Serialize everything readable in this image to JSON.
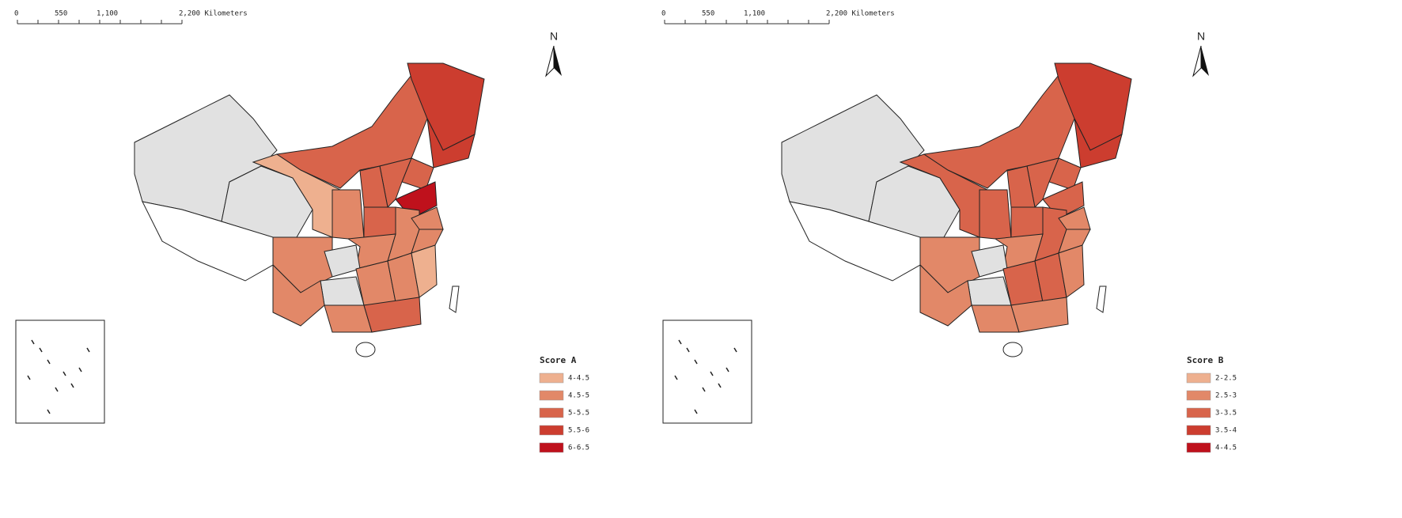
{
  "maps": [
    {
      "scale_bar": {
        "labels": [
          "0",
          "550",
          "1,100",
          "2,200 Kilometers"
        ]
      },
      "north": "N",
      "legend": {
        "title": "Score A",
        "items": [
          {
            "label": "4-4.5",
            "color": "#eeb08f"
          },
          {
            "label": "4.5-5",
            "color": "#e28868"
          },
          {
            "label": "5-5.5",
            "color": "#d8644b"
          },
          {
            "label": "5.5-6",
            "color": "#cc3d2f"
          },
          {
            "label": "6-6.5",
            "color": "#bf111c"
          }
        ]
      }
    },
    {
      "scale_bar": {
        "labels": [
          "0",
          "550",
          "1,100",
          "2,200 Kilometers"
        ]
      },
      "north": "N",
      "legend": {
        "title": "Score B",
        "items": [
          {
            "label": "2-2.5",
            "color": "#eeb08f"
          },
          {
            "label": "2.5-3",
            "color": "#e28868"
          },
          {
            "label": "3-3.5",
            "color": "#d8644b"
          },
          {
            "label": "3.5-4",
            "color": "#cc3d2f"
          },
          {
            "label": "4-4.5",
            "color": "#bf111c"
          }
        ]
      }
    }
  ]
}
